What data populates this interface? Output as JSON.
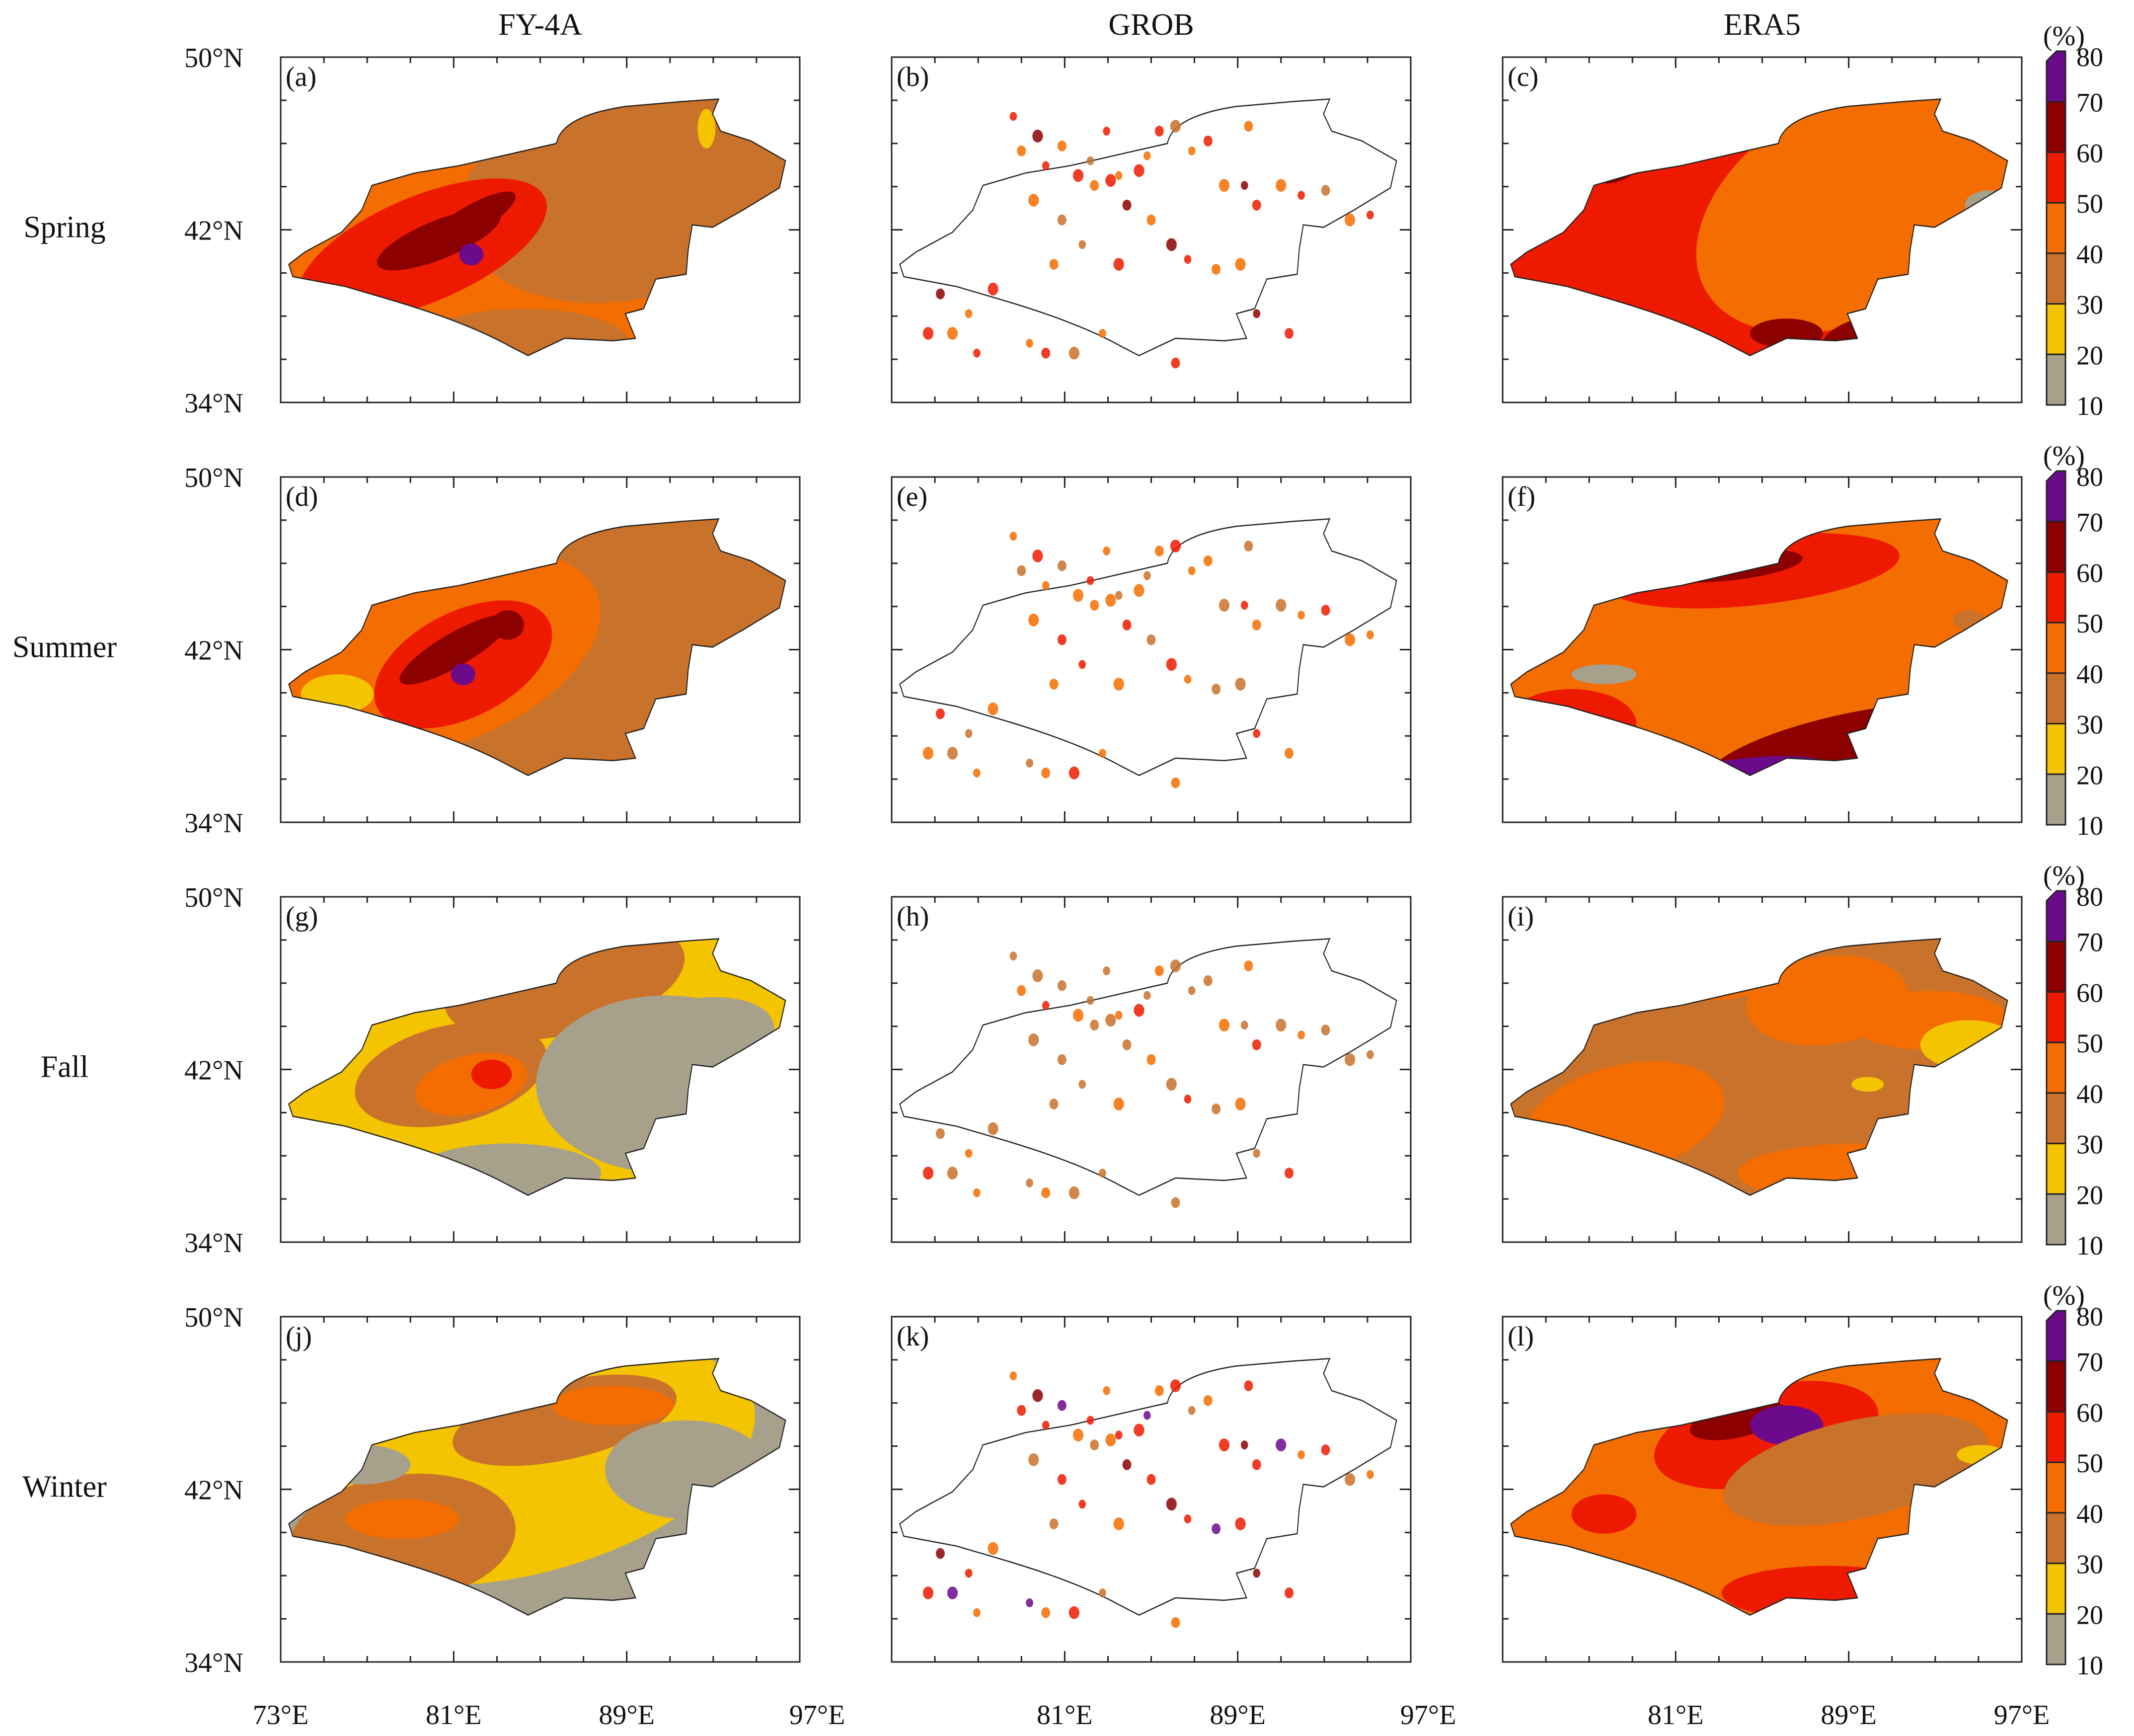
{
  "columns": [
    "FY-4A",
    "GROB",
    "ERA5"
  ],
  "seasons": [
    "Spring",
    "Summer",
    "Fall",
    "Winter"
  ],
  "panel_labels": [
    "(a)",
    "(b)",
    "(c)",
    "(d)",
    "(e)",
    "(f)",
    "(g)",
    "(h)",
    "(i)",
    "(j)",
    "(k)",
    "(l)"
  ],
  "lat_labels": [
    "50°N",
    "42°N",
    "34°N"
  ],
  "lon_labels": [
    "73°E",
    "81°E",
    "89°E",
    "97°E"
  ],
  "colorbar": {
    "unit": "(%)",
    "ticks": [
      "80",
      "70",
      "60",
      "50",
      "40",
      "30",
      "20",
      "10"
    ],
    "colors": [
      "#a7a18c",
      "#f5c400",
      "#c9722b",
      "#f46d00",
      "#ee1a00",
      "#8c0000",
      "#6c0a8c"
    ]
  },
  "class_colors": {
    "c10": "#a7a18c",
    "c20": "#f5c400",
    "c30": "#c9722b",
    "c40": "#f46d00",
    "c50": "#ee1a00",
    "c60": "#8c0000",
    "c70": "#6c0a8c"
  }
}
